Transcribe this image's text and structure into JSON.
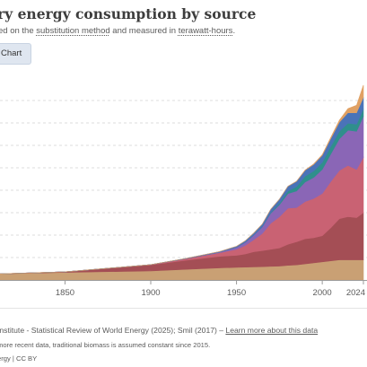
{
  "header": {
    "title": "ry energy consumption by source",
    "subtitle_prefix": "ed on the ",
    "subtitle_link1": "substitution method",
    "subtitle_middle": " and measured in ",
    "subtitle_link2": "terawatt-hours",
    "subtitle_suffix": "."
  },
  "tabs": {
    "chart_label": "Chart"
  },
  "footer": {
    "source_text": "Institute - Statistical Review of World Energy (2025); Smil (2017) – ",
    "source_link": "Learn more about this data",
    "note": "more recent data, traditional biomass is assumed constant since 2015.",
    "license": "ergy | CC BY"
  },
  "colors": {
    "traditional_biomass": "#c9a074",
    "coal": "#a44e55",
    "oil": "#c96273",
    "gas": "#8a66b6",
    "nuclear": "#2f8f8c",
    "hydro": "#4a73b8",
    "other": "#e0a063",
    "gridline": "#dcdcdc",
    "baseline": "#9a9a9a"
  },
  "chart_data": {
    "type": "area",
    "x_tick_labels": [
      "1850",
      "1900",
      "1950",
      "2000",
      "2024"
    ],
    "x_ticks": [
      1850,
      1900,
      1950,
      2000,
      2024
    ],
    "xlim": [
      1810,
      2024
    ],
    "ylim": [
      0,
      200000
    ],
    "grid": true,
    "x": [
      1810,
      1850,
      1900,
      1920,
      1940,
      1950,
      1955,
      1960,
      1965,
      1970,
      1975,
      1980,
      1985,
      1990,
      1995,
      2000,
      2005,
      2010,
      2015,
      2020,
      2024
    ],
    "series": [
      {
        "key": "traditional_biomass",
        "color": "#c9a074",
        "values": [
          6000,
          7500,
          9000,
          10500,
          12000,
          12500,
          12800,
          13000,
          13200,
          13500,
          13800,
          14500,
          15000,
          16000,
          17000,
          18000,
          19000,
          20000,
          20000,
          20000,
          20000
        ]
      },
      {
        "key": "coal",
        "color": "#a44e55",
        "values": [
          0,
          600,
          6000,
          9000,
          11500,
          12000,
          13000,
          15000,
          16000,
          17000,
          18000,
          21000,
          23000,
          25000,
          25000,
          26000,
          33000,
          41000,
          43000,
          42000,
          47000
        ]
      },
      {
        "key": "oil",
        "color": "#c96273",
        "values": [
          0,
          0,
          200,
          1500,
          3500,
          6000,
          8500,
          12000,
          17000,
          26000,
          31000,
          36000,
          34000,
          37000,
          39000,
          42000,
          46000,
          48000,
          51000,
          48000,
          55000
        ]
      },
      {
        "key": "gas",
        "color": "#8a66b6",
        "values": [
          0,
          0,
          0,
          100,
          700,
          2000,
          3000,
          4500,
          6500,
          10000,
          12000,
          14500,
          16500,
          19500,
          21000,
          24000,
          27500,
          31500,
          35000,
          38000,
          41000
        ]
      },
      {
        "key": "nuclear",
        "color": "#2f8f8c",
        "values": [
          0,
          0,
          0,
          0,
          0,
          0,
          0,
          50,
          200,
          600,
          1500,
          2400,
          4300,
          5700,
          6400,
          7000,
          7500,
          7500,
          7000,
          7000,
          7200
        ]
      },
      {
        "key": "hydro",
        "color": "#4a73b8",
        "values": [
          0,
          0,
          0,
          200,
          500,
          1000,
          1500,
          2000,
          2600,
          3300,
          4000,
          4800,
          5300,
          5900,
          6500,
          7000,
          7800,
          9000,
          10500,
          11300,
          11700
        ]
      },
      {
        "key": "other",
        "color": "#e0a063",
        "values": [
          0,
          0,
          0,
          0,
          0,
          0,
          0,
          0,
          0,
          0,
          0,
          0,
          100,
          300,
          500,
          700,
          1100,
          2000,
          4000,
          7500,
          12000
        ]
      }
    ]
  }
}
